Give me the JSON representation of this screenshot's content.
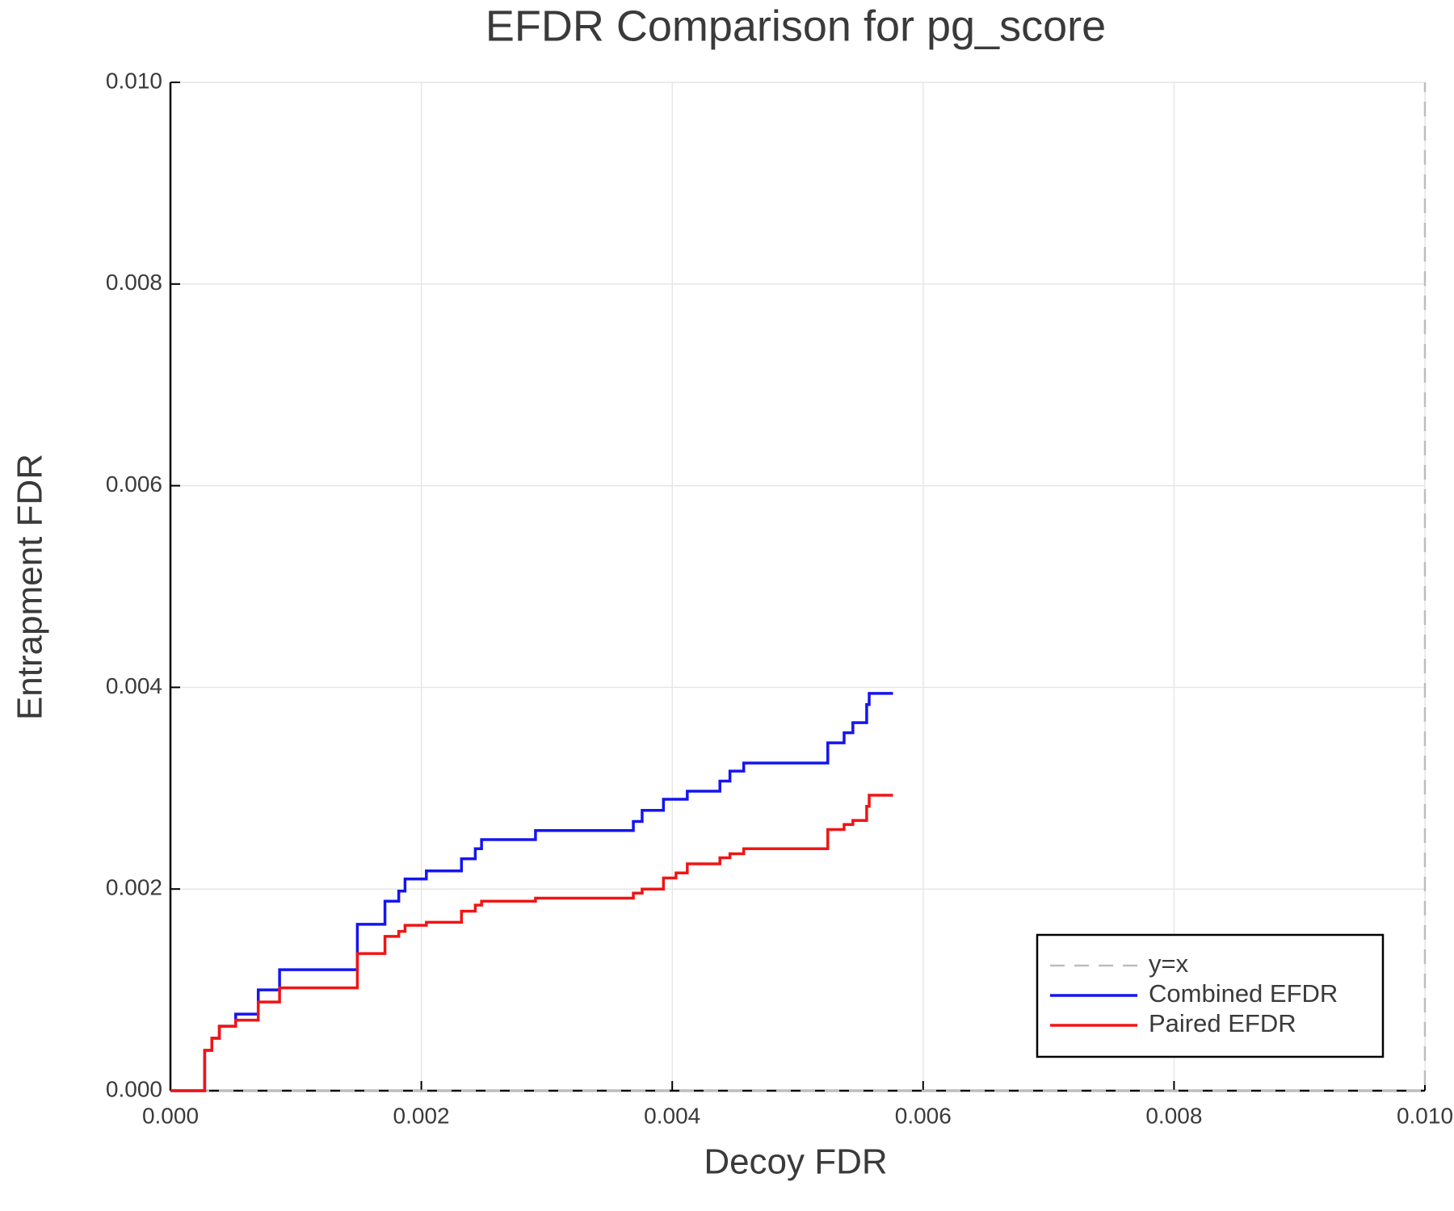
{
  "chart_data": {
    "type": "line",
    "step": "post",
    "title": "EFDR Comparison for pg_score",
    "x_label": "Decoy FDR",
    "y_label": "Entrapment FDR",
    "xlim": [
      0,
      0.01
    ],
    "ylim": [
      0,
      0.01
    ],
    "xticks": [
      {
        "value": 0,
        "label": "0.000"
      },
      {
        "value": 0.002,
        "label": "0.002"
      },
      {
        "value": 0.004,
        "label": "0.004"
      },
      {
        "value": 0.006,
        "label": "0.006"
      },
      {
        "value": 0.008,
        "label": "0.008"
      },
      {
        "value": 0.01,
        "label": "0.010"
      }
    ],
    "yticks": [
      {
        "value": 0,
        "label": "0.000"
      },
      {
        "value": 0.002,
        "label": "0.002"
      },
      {
        "value": 0.004,
        "label": "0.004"
      },
      {
        "value": 0.006,
        "label": "0.006"
      },
      {
        "value": 0.008,
        "label": "0.008"
      },
      {
        "value": 0.01,
        "label": "0.010"
      }
    ],
    "grid": true,
    "legend": "lower right",
    "series": [
      {
        "name": "y=x",
        "color": "#bdbdbd",
        "dashed": true,
        "x": [
          0,
          0.01
        ],
        "values": [
          0,
          0.01
        ]
      },
      {
        "name": "Combined EFDR",
        "color": "#1515f0",
        "x": [
          0,
          0.000273,
          0.00033,
          0.00039,
          0.00052,
          0.0007,
          0.00087,
          0.00149,
          0.00171,
          0.00182,
          0.00187,
          0.00204,
          0.00232,
          0.00243,
          0.00248,
          0.00291,
          0.00369,
          0.00376,
          0.00393,
          0.00412,
          0.00438,
          0.00446,
          0.00457,
          0.00524,
          0.00537,
          0.00544,
          0.00555,
          0.00557,
          0.00576
        ],
        "values": [
          0,
          0.0004,
          0.00052,
          0.00064,
          0.00076,
          0.001,
          0.0012,
          0.00165,
          0.00188,
          0.00198,
          0.0021,
          0.00218,
          0.0023,
          0.0024,
          0.00249,
          0.00258,
          0.00267,
          0.00278,
          0.00289,
          0.00297,
          0.00307,
          0.00317,
          0.00325,
          0.00345,
          0.00355,
          0.00365,
          0.00383,
          0.00394,
          0.00394
        ]
      },
      {
        "name": "Paired EFDR",
        "color": "#f01515",
        "x": [
          0,
          0.000273,
          0.00033,
          0.00039,
          0.00052,
          0.0007,
          0.00087,
          0.00149,
          0.00171,
          0.00182,
          0.00187,
          0.00204,
          0.00232,
          0.00243,
          0.00248,
          0.00291,
          0.00369,
          0.00376,
          0.00393,
          0.00403,
          0.00412,
          0.00438,
          0.00446,
          0.00457,
          0.00524,
          0.00537,
          0.00544,
          0.00555,
          0.00557,
          0.00576
        ],
        "values": [
          0,
          0.0004,
          0.00052,
          0.00064,
          0.0007,
          0.00088,
          0.00102,
          0.00136,
          0.00153,
          0.00158,
          0.00164,
          0.00167,
          0.00178,
          0.00184,
          0.00188,
          0.00191,
          0.00196,
          0.002,
          0.00211,
          0.00216,
          0.00225,
          0.00231,
          0.00235,
          0.0024,
          0.00259,
          0.00264,
          0.00268,
          0.00282,
          0.00293,
          0.00293
        ]
      }
    ]
  }
}
